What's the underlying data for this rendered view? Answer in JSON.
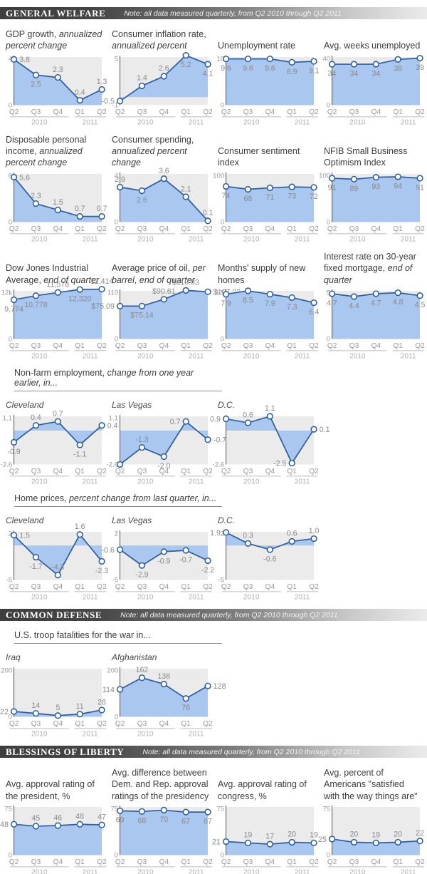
{
  "categories": [
    "Q2 2010",
    "Q3 2010",
    "Q4 2010",
    "Q1 2011",
    "Q2 2011"
  ],
  "x_tick_labels": [
    "Q2",
    "Q3",
    "Q4",
    "Q1",
    "Q2"
  ],
  "year_labels": [
    "2010",
    "2011"
  ],
  "colors": {
    "fill": "#a9c7ef",
    "line": "#2f5f9c",
    "plot_bg": "#ebebeb",
    "value_label": "#8a8a8a",
    "tick_label": "#999999",
    "axis": "#4d4d4d",
    "x_label": "#999999",
    "year_label": "#b0b0b0",
    "group_line": "#bbbbbb",
    "marker_fill": "#ffffff"
  },
  "chart_data": [
    {
      "id": "gdp-growth",
      "type": "area",
      "title": [
        {
          "t": "GDP growth, ",
          "i": false
        },
        {
          "t": "annualized percent change",
          "i": true
        }
      ],
      "ylim": [
        0,
        4
      ],
      "baseline": 0,
      "yticks": [
        "4",
        "0"
      ],
      "values": [
        3.8,
        2.5,
        2.3,
        0.4,
        1.3
      ],
      "point_labels": [
        "3.8",
        "2.5",
        "2.3",
        "0.4",
        "1.3"
      ],
      "label_pos": [
        "right",
        "below",
        "above",
        "above",
        "above"
      ]
    },
    {
      "id": "consumer-inflation",
      "type": "area",
      "title": [
        {
          "t": "Consumer inflation rate, ",
          "i": false
        },
        {
          "t": "annualized percent",
          "i": true
        }
      ],
      "ylim": [
        -1,
        5
      ],
      "baseline": 0,
      "yticks": [
        "5",
        "-1"
      ],
      "values": [
        -0.5,
        1.4,
        2.6,
        5.2,
        4.1
      ],
      "point_labels": [
        "-0.5",
        "1.4",
        "2.6",
        "5.2",
        "4.1"
      ],
      "label_pos": [
        "left",
        "above",
        "above",
        "below",
        "below"
      ]
    },
    {
      "id": "unemployment-rate",
      "type": "area",
      "title": [
        {
          "t": "Unemployment rate",
          "i": false
        }
      ],
      "ylim": [
        0,
        10
      ],
      "baseline": 0,
      "yticks": [
        "10",
        "0"
      ],
      "values": [
        9.6,
        9.6,
        9.6,
        8.9,
        9.1
      ],
      "point_labels": [
        "9.6",
        "9.6",
        "9.6",
        "8.9",
        "9.1"
      ],
      "label_pos": [
        "below",
        "below",
        "below",
        "below",
        "below"
      ]
    },
    {
      "id": "avg-weeks-unemployed",
      "type": "area",
      "title": [
        {
          "t": "Avg. weeks unemployed",
          "i": false
        }
      ],
      "ylim": [
        0,
        40
      ],
      "baseline": 0,
      "yticks": [
        "40",
        "0"
      ],
      "values": [
        34,
        34,
        34,
        38,
        39
      ],
      "point_labels": [
        "34",
        "34",
        "34",
        "38",
        "39"
      ],
      "label_pos": [
        "below",
        "below",
        "below",
        "below",
        "below"
      ]
    },
    {
      "id": "disposable-income",
      "type": "area",
      "title": [
        {
          "t": "Disposable personal income, ",
          "i": false
        },
        {
          "t": "annualized percent change",
          "i": true
        }
      ],
      "ylim": [
        0,
        6
      ],
      "baseline": 0,
      "yticks": [
        "6",
        "0"
      ],
      "values": [
        5.6,
        2.3,
        1.5,
        0.7,
        0.7
      ],
      "point_labels": [
        "5.6",
        "2.3",
        "1.5",
        "0.7",
        "0.7"
      ],
      "label_pos": [
        "right",
        "above",
        "above",
        "above",
        "above"
      ]
    },
    {
      "id": "consumer-spending",
      "type": "area",
      "title": [
        {
          "t": "Consumer spending, ",
          "i": false
        },
        {
          "t": "annualized percent change",
          "i": true
        }
      ],
      "ylim": [
        0,
        4
      ],
      "baseline": 0,
      "yticks": [
        "4",
        "0"
      ],
      "values": [
        2.9,
        2.6,
        3.6,
        2.1,
        0.1
      ],
      "point_labels": [
        "2.9",
        "2.6",
        "3.6",
        "2.1",
        "0.1"
      ],
      "label_pos": [
        "above",
        "below",
        "above",
        "above",
        "above"
      ]
    },
    {
      "id": "consumer-sentiment",
      "type": "area",
      "title": [
        {
          "t": "Consumer sentiment index",
          "i": false
        }
      ],
      "ylim": [
        0,
        100
      ],
      "baseline": 0,
      "yticks": [
        "100",
        "0"
      ],
      "values": [
        74,
        68,
        71,
        73,
        72
      ],
      "point_labels": [
        "74",
        "68",
        "71",
        "73",
        "72"
      ],
      "label_pos": [
        "below",
        "below",
        "below",
        "below",
        "below"
      ]
    },
    {
      "id": "nfib-optimism",
      "type": "area",
      "title": [
        {
          "t": "NFIB Small Business Optimism Index",
          "i": false
        }
      ],
      "ylim": [
        0,
        100
      ],
      "baseline": 0,
      "yticks": [
        "100",
        "0"
      ],
      "values": [
        91,
        89,
        93,
        94,
        91
      ],
      "point_labels": [
        "91",
        "89",
        "93",
        "94",
        "91"
      ],
      "label_pos": [
        "below",
        "below",
        "below",
        "below",
        "below"
      ]
    },
    {
      "id": "dow-jones",
      "type": "area",
      "title": [
        {
          "t": "Dow Jones Industrial Average, ",
          "i": false
        },
        {
          "t": "end of quarter",
          "i": true
        }
      ],
      "ylim": [
        0,
        12000
      ],
      "baseline": 0,
      "yticks": [
        "12k",
        "0"
      ],
      "values": [
        9774,
        10778,
        11578,
        12320,
        12414
      ],
      "point_labels": [
        "9,774",
        "10,778",
        "11,578",
        "12,320",
        "12,414"
      ],
      "label_pos": [
        "below",
        "below",
        "above",
        "below",
        "above"
      ]
    },
    {
      "id": "oil-price",
      "type": "area",
      "title": [
        {
          "t": "Average price of oil, ",
          "i": false
        },
        {
          "t": "per barrel, end of quarter",
          "i": true
        }
      ],
      "ylim": [
        0,
        110
      ],
      "baseline": 0,
      "yticks": [
        "110",
        "0"
      ],
      "values": [
        75.09,
        75.14,
        90.61,
        110.83,
        107.82
      ],
      "point_labels": [
        "$75.09",
        "$75.14",
        "$90.61",
        "$110.83",
        "$107.82"
      ],
      "label_pos": [
        "left",
        "below",
        "above",
        "above",
        "right"
      ]
    },
    {
      "id": "new-homes-supply",
      "type": "area",
      "title": [
        {
          "t": "Months' supply of new homes",
          "i": false
        }
      ],
      "ylim": [
        0,
        8.5
      ],
      "baseline": 0,
      "yticks": [
        "8.5",
        "0"
      ],
      "values": [
        7.9,
        8.5,
        7.9,
        7.3,
        6.4
      ],
      "point_labels": [
        "7.9",
        "8.5",
        "7.9",
        "7.3",
        "6.4"
      ],
      "label_pos": [
        "below",
        "below",
        "below",
        "below",
        "below"
      ]
    },
    {
      "id": "mortgage-rate",
      "type": "area",
      "title": [
        {
          "t": "Interest rate on 30-year fixed mortgage, ",
          "i": false
        },
        {
          "t": "end of quarter",
          "i": true
        }
      ],
      "ylim": [
        0,
        5
      ],
      "baseline": 0,
      "yticks": [
        "5",
        "0"
      ],
      "values": [
        4.7,
        4.4,
        4.7,
        4.8,
        4.5
      ],
      "point_labels": [
        "4.7",
        "4.4",
        "4.7",
        "4.8",
        "4.5"
      ],
      "label_pos": [
        "below",
        "below",
        "below",
        "below",
        "below"
      ]
    },
    {
      "id": "nonfarm-cleveland",
      "type": "area",
      "title": [
        {
          "t": "Cleveland",
          "i": true
        }
      ],
      "city": true,
      "ylim": [
        -2.6,
        1.1
      ],
      "baseline": 0,
      "yticks": [
        "1.1",
        "-2.6"
      ],
      "values": [
        -0.9,
        0.4,
        0.7,
        -1.1,
        0.4
      ],
      "point_labels": [
        "-0.9",
        "0.4",
        "0.7",
        "-1.1",
        "0.4"
      ],
      "label_pos": [
        "below",
        "above",
        "above",
        "below",
        "right"
      ]
    },
    {
      "id": "nonfarm-las-vegas",
      "type": "area",
      "title": [
        {
          "t": "Las Vegas",
          "i": true
        }
      ],
      "city": true,
      "ylim": [
        -2.6,
        1.1
      ],
      "baseline": 0,
      "yticks": [
        "1.1",
        "-2.6"
      ],
      "values": [
        -2.6,
        -1.3,
        -2.0,
        0.7,
        -0.7
      ],
      "point_labels": [
        "",
        "-1.3",
        "-2.0",
        "0.7",
        "-0.7"
      ],
      "label_pos": [
        "none",
        "above",
        "below",
        "left",
        "right"
      ]
    },
    {
      "id": "nonfarm-dc",
      "type": "area",
      "title": [
        {
          "t": "D.C.",
          "i": true
        }
      ],
      "city": true,
      "ylim": [
        -2.6,
        1.1
      ],
      "baseline": 0,
      "yticks": [
        "",
        "-2.6"
      ],
      "values": [
        0.9,
        0.6,
        1.1,
        -2.5,
        0.1
      ],
      "point_labels": [
        "0.9",
        "0.6",
        "1.1",
        "-2.5",
        "0.1"
      ],
      "label_pos": [
        "left",
        "above",
        "above",
        "left",
        "right"
      ]
    },
    {
      "id": "home-prices-cleveland",
      "type": "area",
      "title": [
        {
          "t": "Cleveland",
          "i": true
        }
      ],
      "city": true,
      "ylim": [
        -5,
        2
      ],
      "baseline": 0,
      "yticks": [
        "2",
        "-5"
      ],
      "values": [
        1.5,
        -1.7,
        -4.3,
        1.6,
        -2.3
      ],
      "point_labels": [
        "1.5",
        "-1.7",
        "-4.3",
        "1.6",
        "-2.3"
      ],
      "label_pos": [
        "right",
        "below",
        "above",
        "above",
        "below"
      ]
    },
    {
      "id": "home-prices-las-vegas",
      "type": "area",
      "title": [
        {
          "t": "Las Vegas",
          "i": true
        }
      ],
      "city": true,
      "ylim": [
        -5,
        2
      ],
      "baseline": 0,
      "yticks": [
        "2",
        "-5"
      ],
      "values": [
        -0.6,
        -2.9,
        -0.9,
        -0.7,
        -2.2
      ],
      "point_labels": [
        "-0.6",
        "-2.9",
        "-0.9",
        "-0.7",
        "-2.2"
      ],
      "label_pos": [
        "left",
        "below",
        "below",
        "below",
        "below"
      ]
    },
    {
      "id": "home-prices-dc",
      "type": "area",
      "title": [
        {
          "t": "D.C.",
          "i": true
        }
      ],
      "city": true,
      "ylim": [
        -5,
        2
      ],
      "baseline": 0,
      "yticks": [
        "2",
        "-5"
      ],
      "values": [
        1.9,
        0.3,
        -0.6,
        0.6,
        1.0
      ],
      "point_labels": [
        "1.9",
        "0.3",
        "-0.6",
        "0.6",
        "1.0"
      ],
      "label_pos": [
        "left",
        "above",
        "below",
        "above",
        "above"
      ]
    },
    {
      "id": "fatalities-iraq",
      "type": "area",
      "title": [
        {
          "t": "Iraq",
          "i": true
        }
      ],
      "city": true,
      "ylim": [
        0,
        200
      ],
      "baseline": 0,
      "yticks": [
        "200",
        "0"
      ],
      "values": [
        22,
        14,
        5,
        11,
        28
      ],
      "point_labels": [
        "22",
        "14",
        "5",
        "11",
        "28"
      ],
      "label_pos": [
        "left",
        "above",
        "above",
        "above",
        "above"
      ]
    },
    {
      "id": "fatalities-afghanistan",
      "type": "area",
      "title": [
        {
          "t": "Afghanistan",
          "i": true
        }
      ],
      "city": true,
      "ylim": [
        0,
        200
      ],
      "baseline": 0,
      "yticks": [
        "200",
        "0"
      ],
      "values": [
        114,
        162,
        136,
        76,
        128
      ],
      "point_labels": [
        "114",
        "162",
        "136",
        "76",
        "128"
      ],
      "label_pos": [
        "left",
        "above",
        "above",
        "below",
        "right"
      ]
    },
    {
      "id": "approval-president",
      "type": "area",
      "title": [
        {
          "t": "Avg. approval rating of the president, %",
          "i": false
        }
      ],
      "ylim": [
        0,
        75
      ],
      "baseline": 0,
      "yticks": [
        "75",
        "0"
      ],
      "values": [
        48,
        45,
        46,
        48,
        47
      ],
      "point_labels": [
        "48",
        "45",
        "46",
        "48",
        "47"
      ],
      "label_pos": [
        "left",
        "above",
        "above",
        "above",
        "above"
      ]
    },
    {
      "id": "approval-difference",
      "type": "area",
      "title": [
        {
          "t": "Avg. difference between Dem. and Rep. approval ratings of the presidency",
          "i": false
        }
      ],
      "ylim": [
        0,
        75
      ],
      "baseline": 0,
      "yticks": [
        "75",
        "0"
      ],
      "values": [
        69,
        68,
        70,
        67,
        67
      ],
      "point_labels": [
        "69",
        "68",
        "70",
        "67",
        "67"
      ],
      "label_pos": [
        "below",
        "below",
        "below",
        "below",
        "below"
      ]
    },
    {
      "id": "approval-congress",
      "type": "area",
      "title": [
        {
          "t": "Avg. approval rating of congress, %",
          "i": false
        }
      ],
      "ylim": [
        0,
        75
      ],
      "baseline": 0,
      "yticks": [
        "75",
        "0"
      ],
      "values": [
        21,
        19,
        17,
        20,
        19
      ],
      "point_labels": [
        "21",
        "19",
        "17",
        "20",
        "19"
      ],
      "label_pos": [
        "left",
        "above",
        "above",
        "above",
        "above"
      ]
    },
    {
      "id": "satisfied-percent",
      "type": "area",
      "title": [
        {
          "t": "Avg. percent of Americans \"satisfied with the way things are\"",
          "i": false
        }
      ],
      "ylim": [
        0,
        75
      ],
      "baseline": 0,
      "yticks": [
        "75",
        "0"
      ],
      "values": [
        25,
        20,
        19,
        20,
        22
      ],
      "point_labels": [
        "25",
        "20",
        "19",
        "20",
        "22"
      ],
      "label_pos": [
        "left",
        "above",
        "above",
        "above",
        "above"
      ]
    }
  ],
  "sections": [
    {
      "id": "general-welfare",
      "title": "GENERAL WELFARE",
      "note": "Note: all data measured quarterly, from Q2 2010 through Q2 2011",
      "rows": [
        {
          "charts": [
            0,
            1,
            2,
            3
          ]
        },
        {
          "charts": [
            4,
            5,
            6,
            7
          ]
        },
        {
          "charts": [
            8,
            9,
            10,
            11
          ]
        },
        {
          "subheader": [
            {
              "t": "Non-farm employment, ",
              "i": false
            },
            {
              "t": "change from one year earlier, in...",
              "i": true
            }
          ],
          "charts": [
            12,
            13,
            14
          ]
        },
        {
          "subheader": [
            {
              "t": "Home prices, ",
              "i": false
            },
            {
              "t": "percent change from last quarter, in...",
              "i": true
            }
          ],
          "charts": [
            15,
            16,
            17
          ]
        }
      ]
    },
    {
      "id": "common-defense",
      "title": "COMMON DEFENSE",
      "note": "Note: all data measured quarterly, from Q2 2010 through Q2 2011",
      "rows": [
        {
          "subheader": [
            {
              "t": "U.S. troop fatalities for the war in...",
              "i": false
            }
          ],
          "charts": [
            18,
            19
          ]
        }
      ]
    },
    {
      "id": "blessings-of-liberty",
      "title": "BLESSINGS OF LIBERTY",
      "note": "Note: all data measured quarterly, from Q2 2010 through Q2 2011",
      "rows": [
        {
          "charts": [
            20,
            21,
            22,
            23
          ]
        }
      ]
    }
  ]
}
